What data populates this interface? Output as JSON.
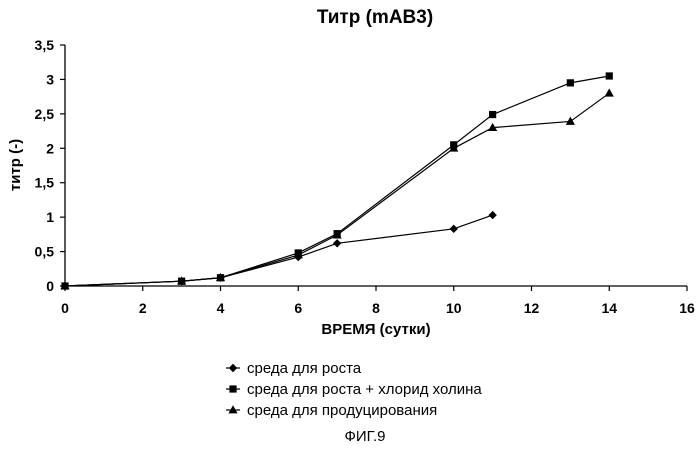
{
  "chart_data": {
    "type": "line",
    "title": "Титр (mAB3)",
    "xlabel": "ВРЕМЯ (сутки)",
    "ylabel": "титр (-)",
    "xlim": [
      0,
      16
    ],
    "ylim": [
      0,
      3.5
    ],
    "x_ticks": [
      "0",
      "2",
      "4",
      "6",
      "8",
      "10",
      "12",
      "14",
      "16"
    ],
    "y_ticks": [
      "0",
      "0,5",
      "1",
      "1,5",
      "2",
      "2,5",
      "3",
      "3,5"
    ],
    "grid": false,
    "legend_position": "bottom",
    "series": [
      {
        "name": "среда для роста",
        "marker": "diamond",
        "x": [
          0,
          3,
          4,
          6,
          7,
          10,
          11
        ],
        "y": [
          0,
          0.07,
          0.12,
          0.42,
          0.62,
          0.83,
          1.03
        ]
      },
      {
        "name": "среда для роста + хлорид холина",
        "marker": "square",
        "x": [
          0,
          3,
          4,
          6,
          7,
          10,
          11,
          13,
          14
        ],
        "y": [
          0,
          0.07,
          0.12,
          0.48,
          0.76,
          2.05,
          2.49,
          2.95,
          3.05
        ]
      },
      {
        "name": "среда для продуцирования",
        "marker": "triangle",
        "x": [
          0,
          3,
          4,
          6,
          7,
          10,
          11,
          13,
          14
        ],
        "y": [
          0,
          0.07,
          0.12,
          0.45,
          0.74,
          2.0,
          2.3,
          2.39,
          2.8
        ]
      }
    ]
  },
  "caption": "ФИГ.9",
  "colors": {
    "line": "#000000",
    "background": "#ffffff"
  }
}
